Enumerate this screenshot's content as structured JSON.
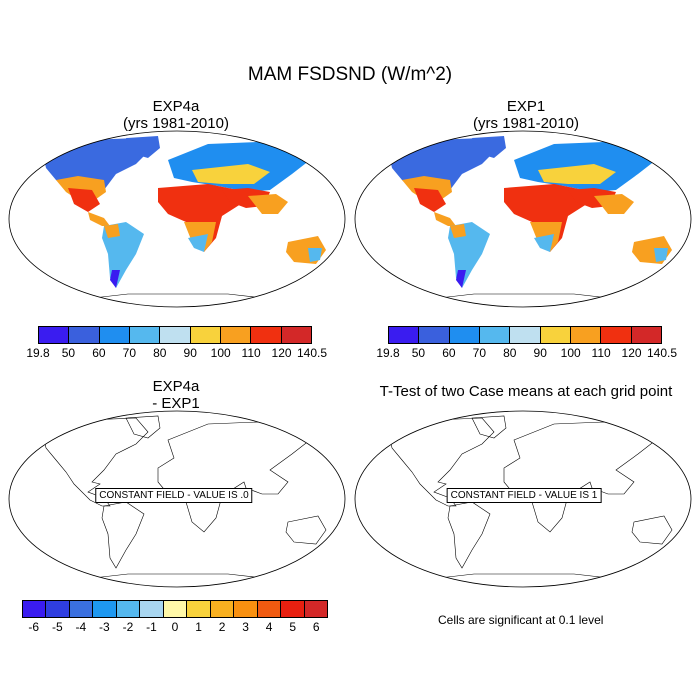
{
  "title": "MAM FSDSND (W/m^2)",
  "panels": [
    {
      "title_line1": "EXP4a",
      "title_line2": "(yrs 1981-2010)"
    },
    {
      "title_line1": "EXP1",
      "title_line2": "(yrs 1981-2010)"
    },
    {
      "title_line1": "EXP4a",
      "title_line2": "- EXP1",
      "constant_label": "CONSTANT FIELD - VALUE IS .0"
    },
    {
      "title_line1": "T-Test of two Case means at each grid point",
      "constant_label": "CONSTANT FIELD - VALUE IS 1",
      "note": "Cells are significant at 0.1 level"
    }
  ],
  "colorbar_top": {
    "colors": [
      "#3a1cf0",
      "#3a60dd",
      "#1f8ef0",
      "#55b8ee",
      "#bfe0f0",
      "#f8d23c",
      "#f8a020",
      "#f03010",
      "#d32828"
    ],
    "labels": [
      "19.8",
      "50",
      "60",
      "70",
      "80",
      "90",
      "100",
      "110",
      "120",
      "140.5"
    ]
  },
  "colorbar_bottom": {
    "colors": [
      "#3a1cf0",
      "#2f3ee0",
      "#3a70e0",
      "#1e98f0",
      "#55b8ee",
      "#a8d6f0",
      "#fff8a8",
      "#f8d23c",
      "#f8b020",
      "#f89010",
      "#f05a10",
      "#e82010",
      "#d32828"
    ],
    "labels": [
      "-6",
      "-5",
      "-4",
      "-3",
      "-2",
      "-1",
      "0",
      "1",
      "2",
      "3",
      "4",
      "5",
      "6"
    ]
  }
}
